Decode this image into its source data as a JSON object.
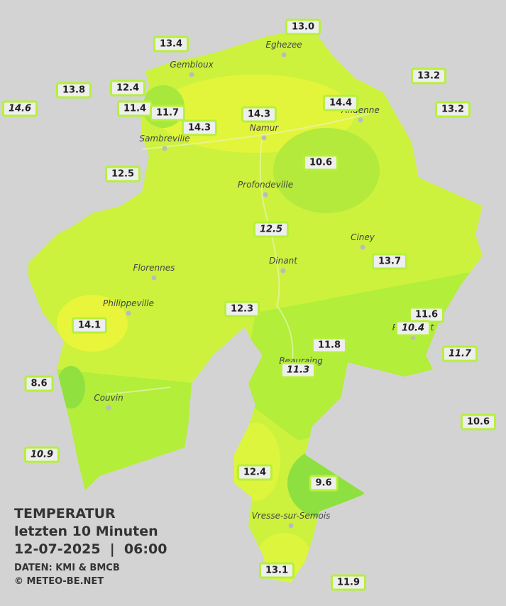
{
  "title": {
    "heading": "TEMPERATUR",
    "subtitle": "letzten 10 Minuten",
    "datetime": "12-07-2025  |  06:00",
    "source": "DATEN: KMI & BMCB",
    "copyright": "© METEO-BE.NET"
  },
  "cities": [
    "Eghezee",
    "Gembloux",
    "Andenne",
    "Namur",
    "Sambreville",
    "Profondeville",
    "Ciney",
    "Dinant",
    "Florennes",
    "Philippeville",
    "Rochefort",
    "Beauraing",
    "Couvin",
    "Vresse-sur-Semois"
  ],
  "stations": [
    "13.0",
    "13.4",
    "13.2",
    "13.8",
    "12.4",
    "14.6",
    "11.4",
    "11.7",
    "14.3",
    "14.4",
    "13.2",
    "14.3",
    "10.6",
    "12.5",
    "12.5",
    "13.7",
    "12.3",
    "11.6",
    "10.4",
    "14.1",
    "11.8",
    "11.7",
    "11.3",
    "8.6",
    "10.6",
    "10.9",
    "12.4",
    "9.6",
    "13.1",
    "11.9"
  ]
}
